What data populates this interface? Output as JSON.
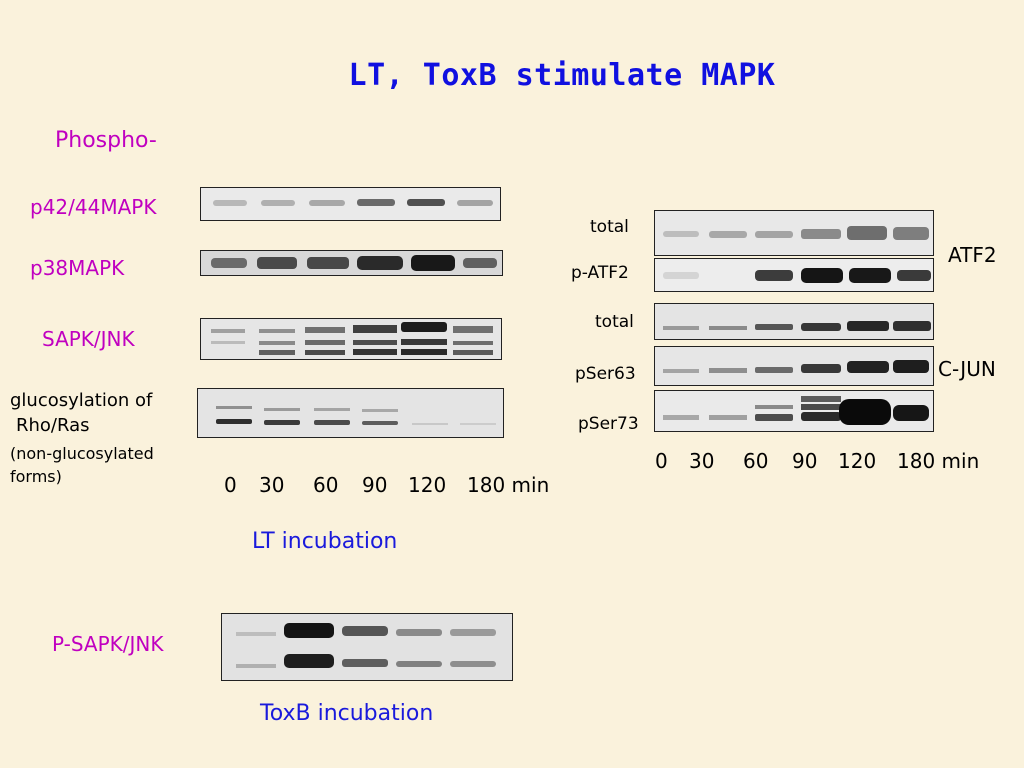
{
  "title": "LT, ToxB stimulate MAPK",
  "left_panel": {
    "header": "Phospho-",
    "row_labels": {
      "p42_44": "p42/44MAPK",
      "p38": "p38MAPK",
      "sapk_jnk": "SAPK/JNK",
      "gluco_line1": "glucosylation of",
      "gluco_line2": "Rho/Ras",
      "gluco_line3": "(non-glucosylated",
      "gluco_line4": "forms)"
    },
    "time_points": [
      "0",
      "30",
      "60",
      "90",
      "120",
      "180 min"
    ],
    "caption": "LT incubation"
  },
  "toxb_panel": {
    "label": "P-SAPK/JNK",
    "caption": "ToxB incubation"
  },
  "right_panel": {
    "row_labels": {
      "atf2_total": "total",
      "p_atf2": "p-ATF2",
      "cjun_total": "total",
      "pser63": "pSer63",
      "pser73": "pSer73"
    },
    "group_labels": {
      "atf2": "ATF2",
      "cjun": "C-JUN"
    },
    "time_points": [
      "0",
      "30",
      "60",
      "90",
      "120",
      "180 min"
    ]
  },
  "colors": {
    "background": "#FAF2DC",
    "title": "#1010E0",
    "magenta_labels": "#C000C0",
    "blue_captions": "#1A1ADC",
    "blot_background": "#ECECEC",
    "band": "#1E1E1E"
  }
}
